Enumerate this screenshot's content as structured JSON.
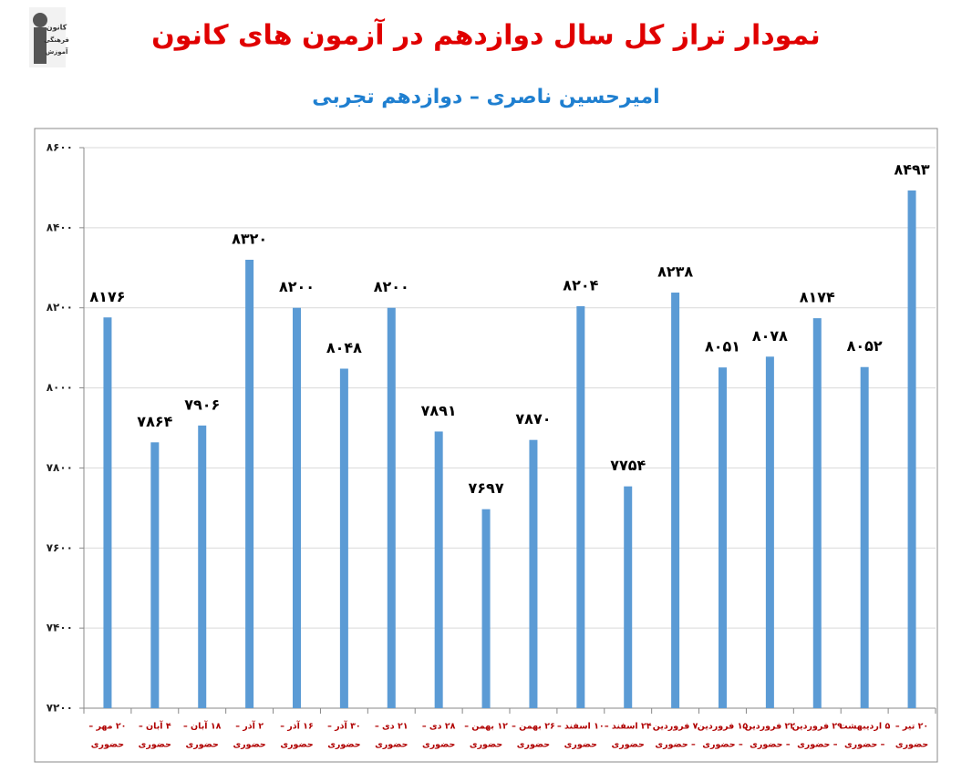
{
  "logo_text": [
    "کانون",
    "فرهنگی",
    "آموزش"
  ],
  "chart_data": {
    "type": "bar",
    "title": "نمودار تراز کل سال دوازدهم در آزمون های کانون",
    "subtitle": "امیرحسین ناصری – دوازدهم تجربی",
    "categories": [
      [
        "۲۰ مهر –",
        "حضوری"
      ],
      [
        "۴ آبان –",
        "حضوری"
      ],
      [
        "۱۸ آبان –",
        "حضوری"
      ],
      [
        "۲ آذر –",
        "حضوری"
      ],
      [
        "۱۶ آذر –",
        "حضوری"
      ],
      [
        "۳۰ آذر –",
        "حضوری"
      ],
      [
        "۲۱ دی –",
        "حضوری"
      ],
      [
        "۲۸ دی –",
        "حضوری"
      ],
      [
        "۱۲ بهمن –",
        "حضوری"
      ],
      [
        "۲۶ بهمن –",
        "حضوری"
      ],
      [
        "۱۰ اسفند –",
        "حضوری"
      ],
      [
        "۲۴ اسفند –",
        "حضوری"
      ],
      [
        "۷ فروردین",
        "– حضوری"
      ],
      [
        "۱۵ فروردین",
        "– حضوری"
      ],
      [
        "۲۲ فروردین",
        "– حضوری"
      ],
      [
        "۲۹ فروردین",
        "– حضوری"
      ],
      [
        "۵ اردیبهشت",
        "– حضوری"
      ],
      [
        "۲۰ تیر –",
        "حضوری"
      ]
    ],
    "values": [
      8176,
      7864,
      7906,
      8320,
      8200,
      8048,
      8200,
      7891,
      7697,
      7870,
      8204,
      7754,
      8238,
      8051,
      8078,
      8174,
      8052,
      8493
    ],
    "value_labels": [
      "۸۱۷۶",
      "۷۸۶۴",
      "۷۹۰۶",
      "۸۳۲۰",
      "۸۲۰۰",
      "۸۰۴۸",
      "۸۲۰۰",
      "۷۸۹۱",
      "۷۶۹۷",
      "۷۸۷۰",
      "۸۲۰۴",
      "۷۷۵۴",
      "۸۲۳۸",
      "۸۰۵۱",
      "۸۰۷۸",
      "۸۱۷۴",
      "۸۰۵۲",
      "۸۴۹۳"
    ],
    "color": "#5b9bd5",
    "ylim": [
      7200,
      8600
    ],
    "yticks": [
      {
        "value": 7200,
        "label": "۷۲۰۰"
      },
      {
        "value": 7400,
        "label": "۷۴۰۰"
      },
      {
        "value": 7600,
        "label": "۷۶۰۰"
      },
      {
        "value": 7800,
        "label": "۷۸۰۰"
      },
      {
        "value": 8000,
        "label": "۸۰۰۰"
      },
      {
        "value": 8200,
        "label": "۸۲۰۰"
      },
      {
        "value": 8400,
        "label": "۸۴۰۰"
      },
      {
        "value": 8600,
        "label": "۸۶۰۰"
      }
    ],
    "grid": true
  }
}
